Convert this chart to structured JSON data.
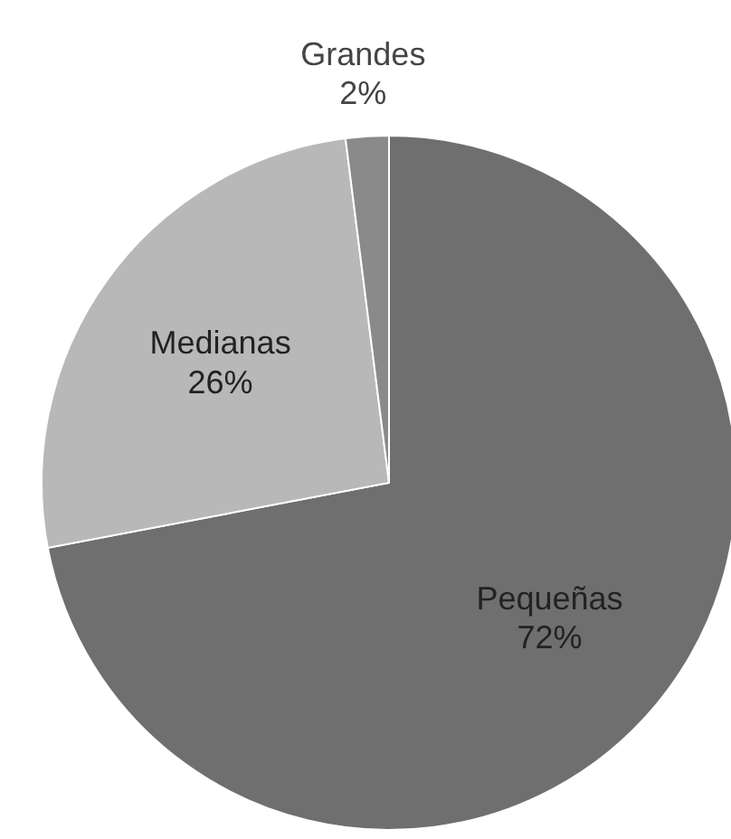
{
  "chart_data": {
    "type": "pie",
    "categories": [
      "Pequeñas",
      "Medianas",
      "Grandes"
    ],
    "values": [
      72,
      26,
      2
    ],
    "value_labels": [
      "72%",
      "26%",
      "2%"
    ],
    "colors": [
      "#6f6f6f",
      "#b8b8b8",
      "#8a8a8a"
    ]
  }
}
